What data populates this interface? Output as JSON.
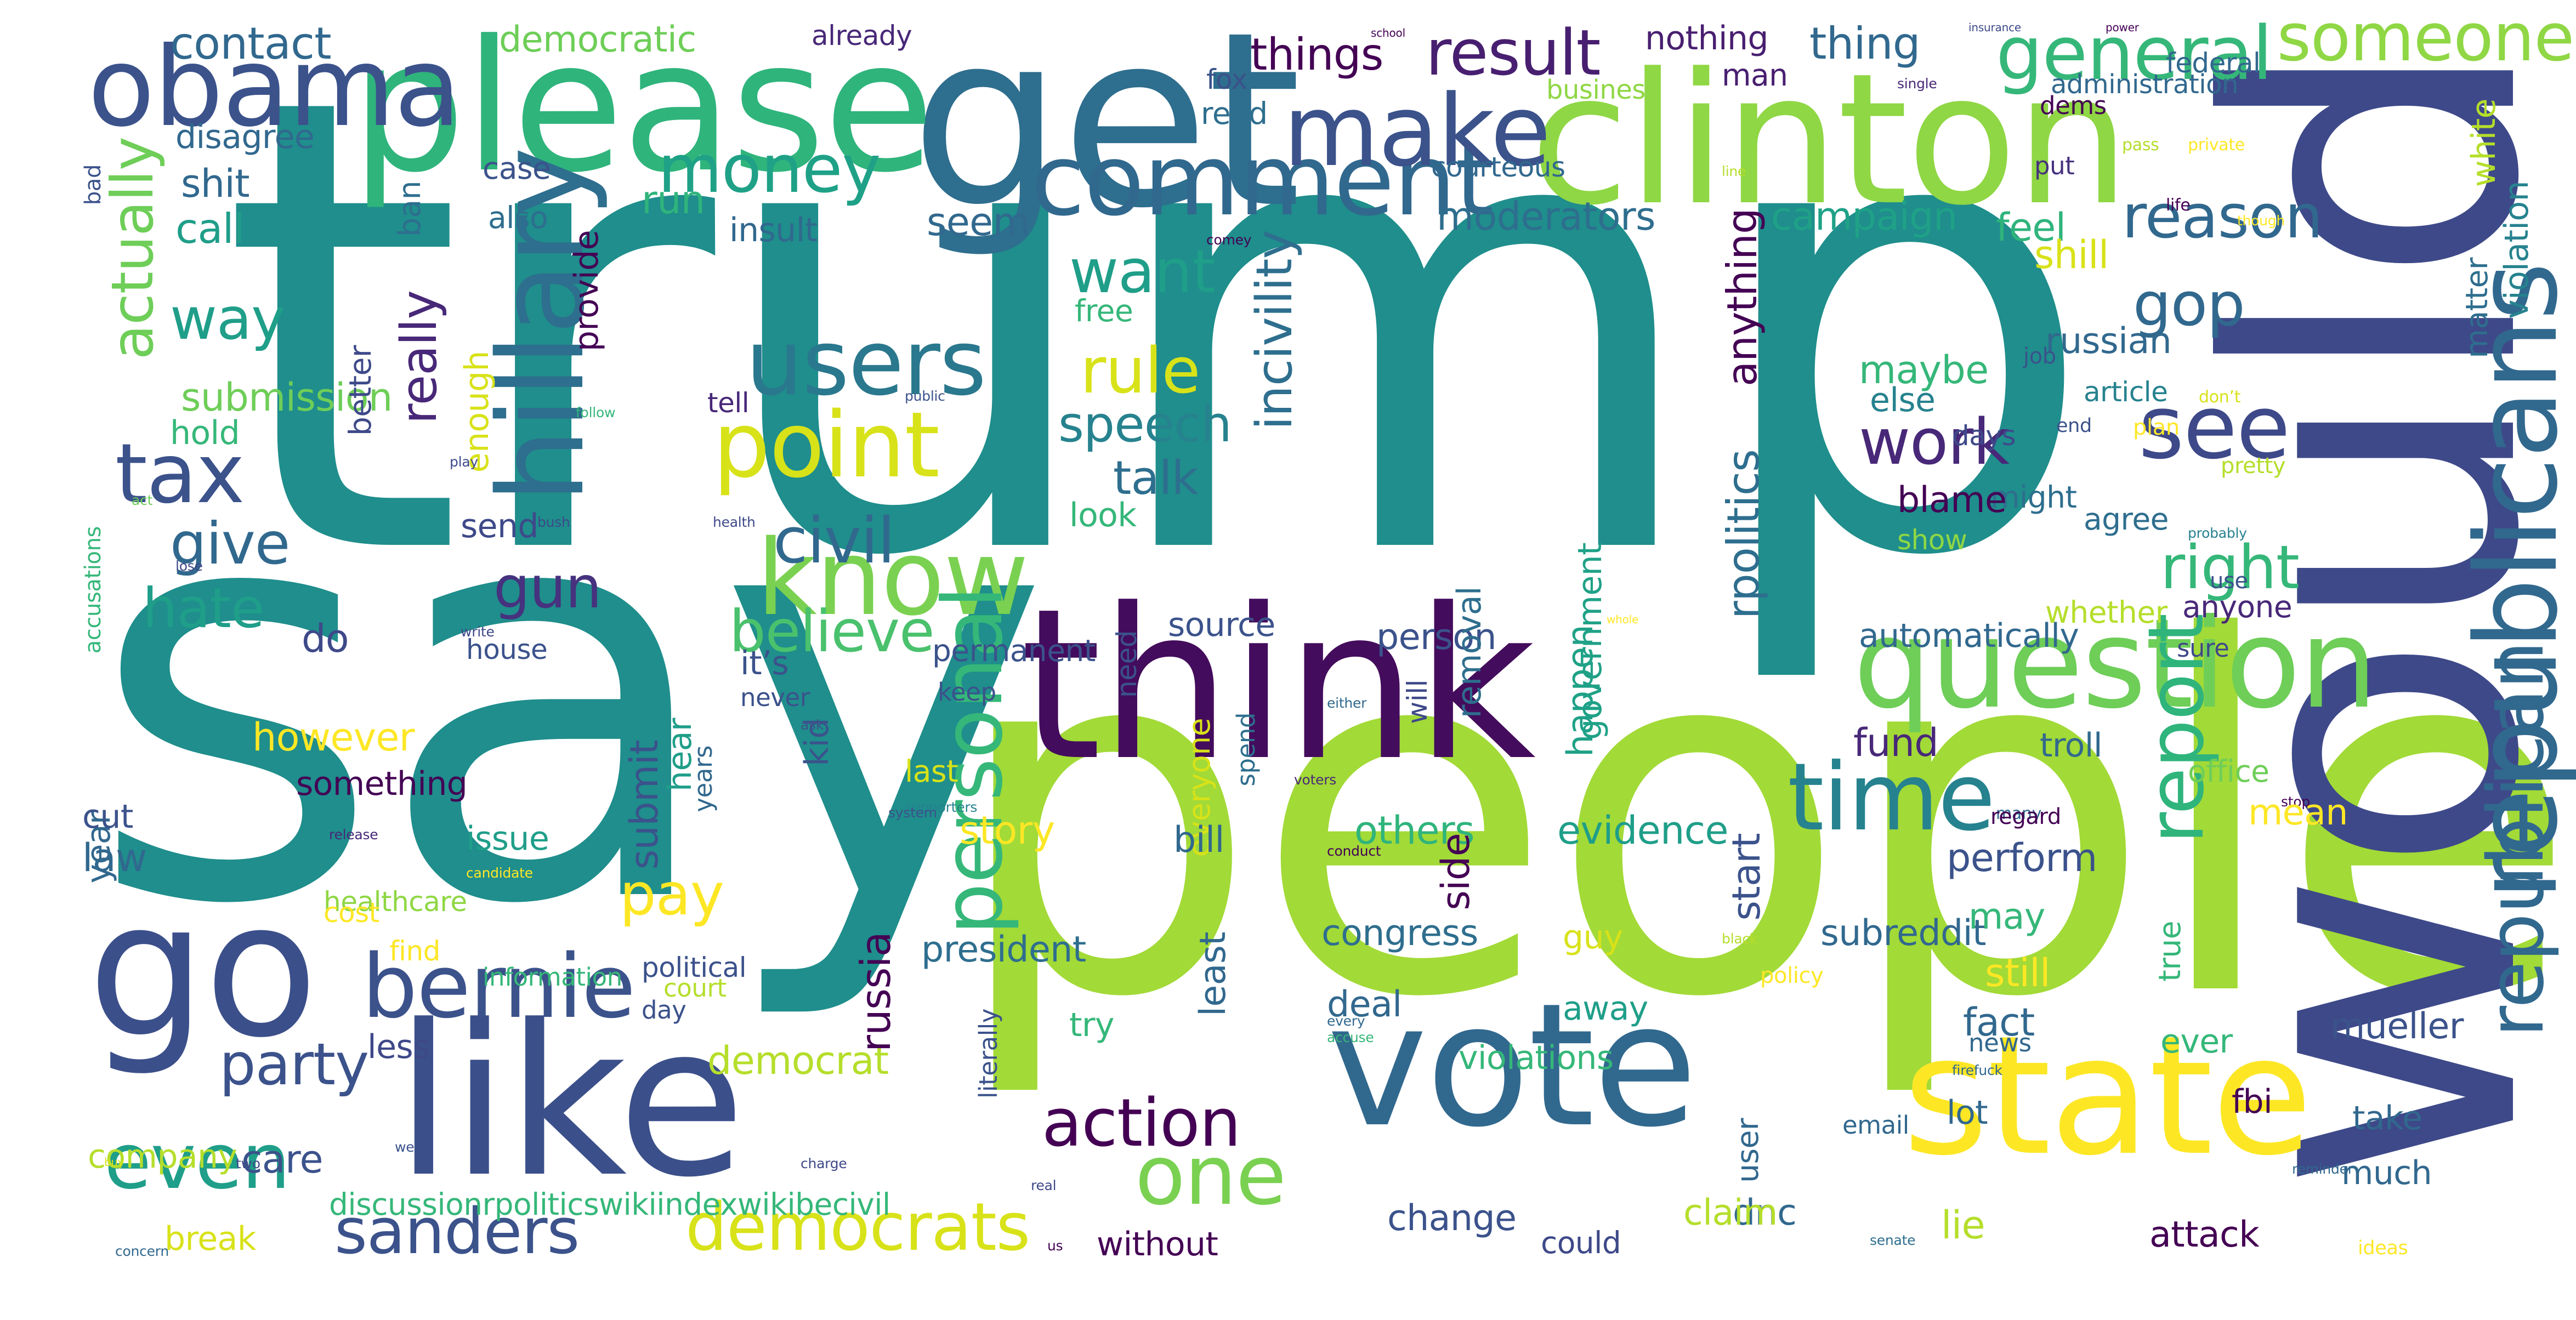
{
  "image": {
    "background_color": "#ffffff",
    "palette": [
      "#440154",
      "#482878",
      "#3e4989",
      "#31688e",
      "#26828e",
      "#1f9e89",
      "#35b779",
      "#6ece58",
      "#b5de2b",
      "#fde725"
    ]
  },
  "words": [
    {
      "text": "trump",
      "color": "#1f8e8c"
    },
    {
      "text": "say",
      "color": "#1f8e8c"
    },
    {
      "text": "people",
      "color": "#a2da37"
    },
    {
      "text": "would",
      "color": "#3e4989"
    },
    {
      "text": "think",
      "color": "#440c5c"
    },
    {
      "text": "get",
      "color": "#2e6e8e"
    },
    {
      "text": "clinton",
      "color": "#8fd744"
    },
    {
      "text": "please",
      "color": "#2fb47c"
    },
    {
      "text": "go",
      "color": "#3b4f8a"
    },
    {
      "text": "like",
      "color": "#3b4f8a"
    },
    {
      "text": "vote",
      "color": "#31688e"
    },
    {
      "text": "state",
      "color": "#fde725"
    },
    {
      "text": "obama",
      "color": "#3b528b"
    },
    {
      "text": "hillary",
      "color": "#2e6e8e"
    },
    {
      "text": "question",
      "color": "#6ece58"
    },
    {
      "text": "republicans",
      "color": "#31688e"
    },
    {
      "text": "comment",
      "color": "#31688e"
    },
    {
      "text": "make",
      "color": "#3b528b"
    },
    {
      "text": "users",
      "color": "#2a788e"
    },
    {
      "text": "know",
      "color": "#7ad151"
    },
    {
      "text": "point",
      "color": "#d8e219"
    },
    {
      "text": "bernie",
      "color": "#3b528b"
    },
    {
      "text": "time",
      "color": "#26828e"
    },
    {
      "text": "see",
      "color": "#3e4989"
    },
    {
      "text": "personal",
      "color": "#35b779"
    },
    {
      "text": "report",
      "color": "#2fb47c"
    },
    {
      "text": "republican",
      "color": "#31688e"
    },
    {
      "text": "tax",
      "color": "#3b528b"
    },
    {
      "text": "money",
      "color": "#1fa187"
    },
    {
      "text": "even",
      "color": "#1f9e89"
    },
    {
      "text": "one",
      "color": "#7ad151"
    },
    {
      "text": "sanders",
      "color": "#3b528b"
    },
    {
      "text": "democrats",
      "color": "#d8e219"
    },
    {
      "text": "action",
      "color": "#440154"
    },
    {
      "text": "general",
      "color": "#35b779"
    },
    {
      "text": "someone",
      "color": "#8fd744"
    },
    {
      "text": "result",
      "color": "#481f70"
    },
    {
      "text": "reason",
      "color": "#31688e"
    },
    {
      "text": "want",
      "color": "#1f9e89"
    },
    {
      "text": "rule",
      "color": "#d8e219"
    },
    {
      "text": "civil",
      "color": "#31688e"
    },
    {
      "text": "work",
      "color": "#482878"
    },
    {
      "text": "gop",
      "color": "#31688e"
    },
    {
      "text": "right",
      "color": "#35b779"
    },
    {
      "text": "believe",
      "color": "#4ac16d"
    },
    {
      "text": "pay",
      "color": "#fde725"
    },
    {
      "text": "party",
      "color": "#3b528b"
    },
    {
      "text": "give",
      "color": "#31688e"
    },
    {
      "text": "hate",
      "color": "#1f9e89"
    },
    {
      "text": "gun",
      "color": "#46327e"
    },
    {
      "text": "way",
      "color": "#1f9e89"
    },
    {
      "text": "actually",
      "color": "#6ece58"
    },
    {
      "text": "really",
      "color": "#482878"
    },
    {
      "text": "incivility",
      "color": "#2e6e8e"
    },
    {
      "text": "anything",
      "color": "#440154"
    },
    {
      "text": "speech",
      "color": "#26828e"
    },
    {
      "text": "talk",
      "color": "#2e6e8e"
    },
    {
      "text": "thing",
      "color": "#31688e"
    },
    {
      "text": "things",
      "color": "#440154"
    },
    {
      "text": "contact",
      "color": "#31688e"
    },
    {
      "text": "democratic",
      "color": "#6ece58"
    },
    {
      "text": "already",
      "color": "#482878"
    },
    {
      "text": "nothing",
      "color": "#481f70"
    },
    {
      "text": "school",
      "color": "#440154"
    },
    {
      "text": "insurance",
      "color": "#3e4989"
    },
    {
      "text": "power",
      "color": "#440154"
    },
    {
      "text": "disagree",
      "color": "#31688e"
    },
    {
      "text": "fox",
      "color": "#3b528b"
    },
    {
      "text": "read",
      "color": "#2e6e8e"
    },
    {
      "text": "business",
      "color": "#8fd744"
    },
    {
      "text": "man",
      "color": "#481f70"
    },
    {
      "text": "single",
      "color": "#482878"
    },
    {
      "text": "administration",
      "color": "#31688e"
    },
    {
      "text": "federal",
      "color": "#31688e"
    },
    {
      "text": "bad",
      "color": "#3b528b"
    },
    {
      "text": "shit",
      "color": "#31688e"
    },
    {
      "text": "call",
      "color": "#1f9e89"
    },
    {
      "text": "ban",
      "color": "#2e6e8e"
    },
    {
      "text": "case",
      "color": "#3b528b"
    },
    {
      "text": "also",
      "color": "#2e6e8e"
    },
    {
      "text": "run",
      "color": "#2fb47c"
    },
    {
      "text": "insult",
      "color": "#31688e"
    },
    {
      "text": "seem",
      "color": "#31688e"
    },
    {
      "text": "moderators",
      "color": "#2e6e8e"
    },
    {
      "text": "campaign",
      "color": "#1fa187"
    },
    {
      "text": "feel",
      "color": "#2fb47c"
    },
    {
      "text": "shill",
      "color": "#d8e219"
    },
    {
      "text": "white",
      "color": "#b5de2b"
    },
    {
      "text": "violation",
      "color": "#26828e"
    },
    {
      "text": "matter",
      "color": "#2e6e8e"
    },
    {
      "text": "courteous",
      "color": "#31688e"
    },
    {
      "text": "put",
      "color": "#46327e"
    },
    {
      "text": "dems",
      "color": "#440154"
    },
    {
      "text": "pass",
      "color": "#b5de2b"
    },
    {
      "text": "private",
      "color": "#fde725"
    },
    {
      "text": "line",
      "color": "#b5de2b"
    },
    {
      "text": "life",
      "color": "#440154"
    },
    {
      "text": "though",
      "color": "#fde725"
    },
    {
      "text": "comey",
      "color": "#440154"
    },
    {
      "text": "provide",
      "color": "#440154"
    },
    {
      "text": "submission",
      "color": "#6ece58"
    },
    {
      "text": "hold",
      "color": "#35b779"
    },
    {
      "text": "better",
      "color": "#3e4989"
    },
    {
      "text": "enough",
      "color": "#d8e219"
    },
    {
      "text": "tell",
      "color": "#482878"
    },
    {
      "text": "public",
      "color": "#3b528b"
    },
    {
      "text": "follow",
      "color": "#35b779"
    },
    {
      "text": "play",
      "color": "#3e4989"
    },
    {
      "text": "free",
      "color": "#35b779"
    },
    {
      "text": "look",
      "color": "#35b779"
    },
    {
      "text": "maybe",
      "color": "#35b779"
    },
    {
      "text": "else",
      "color": "#26828e"
    },
    {
      "text": "russian",
      "color": "#31688e"
    },
    {
      "text": "job",
      "color": "#3b528b"
    },
    {
      "text": "article",
      "color": "#26828e"
    },
    {
      "text": "don’t",
      "color": "#d8e219"
    },
    {
      "text": "end",
      "color": "#3b528b"
    },
    {
      "text": "days",
      "color": "#3e4989"
    },
    {
      "text": "plan",
      "color": "#fde725"
    },
    {
      "text": "pretty",
      "color": "#b5de2b"
    },
    {
      "text": "might",
      "color": "#2e6e8e"
    },
    {
      "text": "agree",
      "color": "#2e6e8e"
    },
    {
      "text": "probably",
      "color": "#26828e"
    },
    {
      "text": "blame",
      "color": "#440154"
    },
    {
      "text": "show",
      "color": "#8fd744"
    },
    {
      "text": "use",
      "color": "#3b528b"
    },
    {
      "text": "year",
      "color": "#31688e"
    },
    {
      "text": "accusations",
      "color": "#35b779"
    },
    {
      "text": "act",
      "color": "#6ece58"
    },
    {
      "text": "lose",
      "color": "#3e4989"
    },
    {
      "text": "bush",
      "color": "#3e4989"
    },
    {
      "text": "health",
      "color": "#3e4989"
    },
    {
      "text": "send",
      "color": "#3e4989"
    },
    {
      "text": "do",
      "color": "#3e4989"
    },
    {
      "text": "house",
      "color": "#3b528b"
    },
    {
      "text": "however",
      "color": "#fde725"
    },
    {
      "text": "something",
      "color": "#440154"
    },
    {
      "text": "submit",
      "color": "#3b528b"
    },
    {
      "text": "permanent",
      "color": "#3b528b"
    },
    {
      "text": "source",
      "color": "#3b528b"
    },
    {
      "text": "person",
      "color": "#3b528b"
    },
    {
      "text": "removal",
      "color": "#2e6e8e"
    },
    {
      "text": "government",
      "color": "#1fa187"
    },
    {
      "text": "rpolitics",
      "color": "#2e6e8e"
    },
    {
      "text": "automatically",
      "color": "#31688e"
    },
    {
      "text": "whether",
      "color": "#b5de2b"
    },
    {
      "text": "anyone",
      "color": "#482878"
    },
    {
      "text": "sure",
      "color": "#3e4989"
    },
    {
      "text": "it’s",
      "color": "#3b528b"
    },
    {
      "text": "never",
      "color": "#3b528b"
    },
    {
      "text": "keep",
      "color": "#3b528b"
    },
    {
      "text": "ask",
      "color": "#3b528b"
    },
    {
      "text": "write",
      "color": "#3e4989"
    },
    {
      "text": "whole",
      "color": "#fde725"
    },
    {
      "text": "fund",
      "color": "#482878"
    },
    {
      "text": "troll",
      "color": "#31688e"
    },
    {
      "text": "office",
      "color": "#6ece58"
    },
    {
      "text": "many",
      "color": "#31688e"
    },
    {
      "text": "stop",
      "color": "#440154"
    },
    {
      "text": "cut",
      "color": "#3b528b"
    },
    {
      "text": "law",
      "color": "#31688e"
    },
    {
      "text": "issue",
      "color": "#1f9e89"
    },
    {
      "text": "hear",
      "color": "#1f9e89"
    },
    {
      "text": "years",
      "color": "#31688e"
    },
    {
      "text": "kid",
      "color": "#3b528b"
    },
    {
      "text": "last",
      "color": "#d8e219"
    },
    {
      "text": "need",
      "color": "#3b528b"
    },
    {
      "text": "everyone",
      "color": "#d8e219"
    },
    {
      "text": "spend",
      "color": "#2e6e8e"
    },
    {
      "text": "either",
      "color": "#31688e"
    },
    {
      "text": "will",
      "color": "#3e4989"
    },
    {
      "text": "happen",
      "color": "#1fa187"
    },
    {
      "text": "supporters",
      "color": "#26828e"
    },
    {
      "text": "voters",
      "color": "#482878"
    },
    {
      "text": "story",
      "color": "#fde725"
    },
    {
      "text": "others",
      "color": "#2fb47c"
    },
    {
      "text": "evidence",
      "color": "#1f9e89"
    },
    {
      "text": "bill",
      "color": "#31688e"
    },
    {
      "text": "mean",
      "color": "#fde725"
    },
    {
      "text": "perform",
      "color": "#3b528b"
    },
    {
      "text": "regard",
      "color": "#440154"
    },
    {
      "text": "system",
      "color": "#3b528b"
    },
    {
      "text": "conduct",
      "color": "#440154"
    },
    {
      "text": "release",
      "color": "#482878"
    },
    {
      "text": "candidate",
      "color": "#fde725"
    },
    {
      "text": "healthcare",
      "color": "#8fd744"
    },
    {
      "text": "cost",
      "color": "#fde725"
    },
    {
      "text": "find",
      "color": "#fde725"
    },
    {
      "text": "political",
      "color": "#3b528b"
    },
    {
      "text": "court",
      "color": "#b5de2b"
    },
    {
      "text": "less",
      "color": "#3e4989"
    },
    {
      "text": "information",
      "color": "#35b779"
    },
    {
      "text": "day",
      "color": "#3b528b"
    },
    {
      "text": "company",
      "color": "#b5de2b"
    },
    {
      "text": "care",
      "color": "#3b528b"
    },
    {
      "text": "well",
      "color": "#3b528b"
    },
    {
      "text": "two",
      "color": "#3e4989"
    },
    {
      "text": "buy",
      "color": "#d8e219"
    },
    {
      "text": "discussionrpoliticswikiindexwikibecivil",
      "color": "#35b779"
    },
    {
      "text": "break",
      "color": "#d8e219"
    },
    {
      "text": "concern",
      "color": "#31688e"
    },
    {
      "text": "real",
      "color": "#3e4989"
    },
    {
      "text": "us",
      "color": "#440154"
    },
    {
      "text": "charge",
      "color": "#3e4989"
    },
    {
      "text": "literally",
      "color": "#3b528b"
    },
    {
      "text": "democrat",
      "color": "#b5de2b"
    },
    {
      "text": "russia",
      "color": "#440154"
    },
    {
      "text": "president",
      "color": "#2e6e8e"
    },
    {
      "text": "try",
      "color": "#35b779"
    },
    {
      "text": "least",
      "color": "#31688e"
    },
    {
      "text": "congress",
      "color": "#2e6e8e"
    },
    {
      "text": "deal",
      "color": "#31688e"
    },
    {
      "text": "every",
      "color": "#31688e"
    },
    {
      "text": "accuse",
      "color": "#35b779"
    },
    {
      "text": "side",
      "color": "#440154"
    },
    {
      "text": "violations",
      "color": "#35b779"
    },
    {
      "text": "guy",
      "color": "#d8e219"
    },
    {
      "text": "away",
      "color": "#1f9e89"
    },
    {
      "text": "black",
      "color": "#b5de2b"
    },
    {
      "text": "policy",
      "color": "#fde725"
    },
    {
      "text": "start",
      "color": "#3b528b"
    },
    {
      "text": "subreddit",
      "color": "#31688e"
    },
    {
      "text": "may",
      "color": "#35b779"
    },
    {
      "text": "still",
      "color": "#fde725"
    },
    {
      "text": "fact",
      "color": "#31688e"
    },
    {
      "text": "news",
      "color": "#31688e"
    },
    {
      "text": "firefuck",
      "color": "#31688e"
    },
    {
      "text": "true",
      "color": "#35b779"
    },
    {
      "text": "ever",
      "color": "#35b779"
    },
    {
      "text": "mueller",
      "color": "#3b528b"
    },
    {
      "text": "fbi",
      "color": "#440154"
    },
    {
      "text": "take",
      "color": "#31688e"
    },
    {
      "text": "email",
      "color": "#31688e"
    },
    {
      "text": "lot",
      "color": "#31688e"
    },
    {
      "text": "user",
      "color": "#31688e"
    },
    {
      "text": "dnc",
      "color": "#31688e"
    },
    {
      "text": "change",
      "color": "#3b528b"
    },
    {
      "text": "could",
      "color": "#3e4989"
    },
    {
      "text": "claim",
      "color": "#b5de2b"
    },
    {
      "text": "lie",
      "color": "#b5de2b"
    },
    {
      "text": "attack",
      "color": "#440154"
    },
    {
      "text": "much",
      "color": "#31688e"
    },
    {
      "text": "reminder",
      "color": "#31688e"
    },
    {
      "text": "ideas",
      "color": "#fde725"
    },
    {
      "text": "without",
      "color": "#440154"
    },
    {
      "text": "senate",
      "color": "#2e6e8e"
    },
    {
      "text": "investigation",
      "color": "#35b779"
    },
    {
      "text": "yeah",
      "color": "#fde725"
    }
  ]
}
